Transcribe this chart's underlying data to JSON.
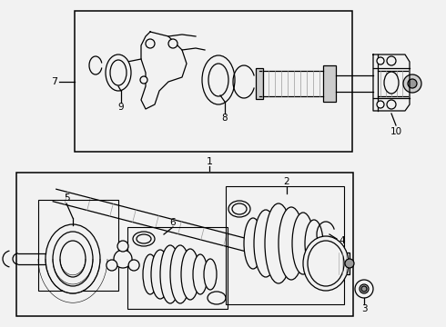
{
  "figsize": [
    4.9,
    3.6
  ],
  "dpi": 100,
  "bg": "#f2f2f2",
  "white": "#ffffff",
  "black": "#000000",
  "gray1": "#cccccc",
  "gray2": "#999999",
  "gray3": "#dddddd"
}
